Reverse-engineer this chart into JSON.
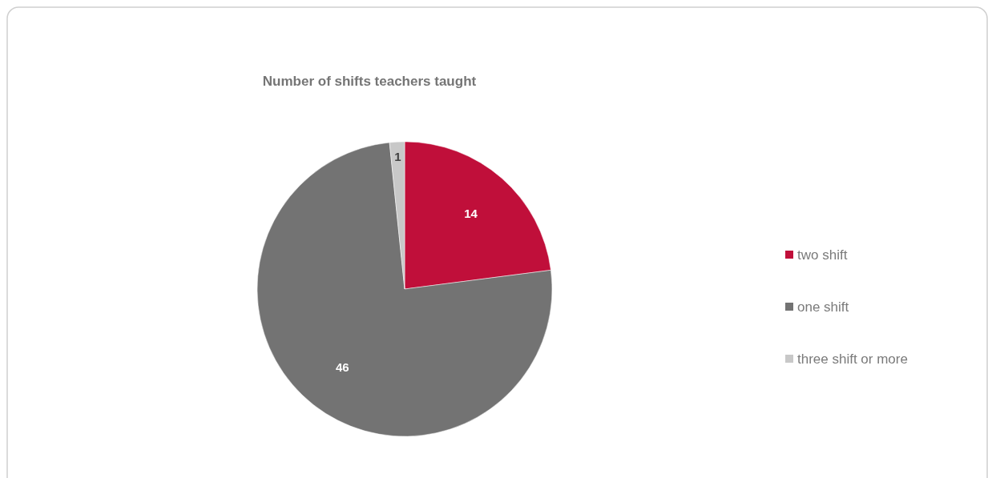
{
  "chart_data": {
    "type": "pie",
    "title": "Number of shifts teachers taught",
    "categories": [
      "two shift",
      "one shift",
      "three shift or more"
    ],
    "values": [
      14,
      46,
      1
    ],
    "colors": [
      "#c00f3a",
      "#737373",
      "#c8c8c8"
    ],
    "data_labels": true,
    "legend": "right"
  }
}
